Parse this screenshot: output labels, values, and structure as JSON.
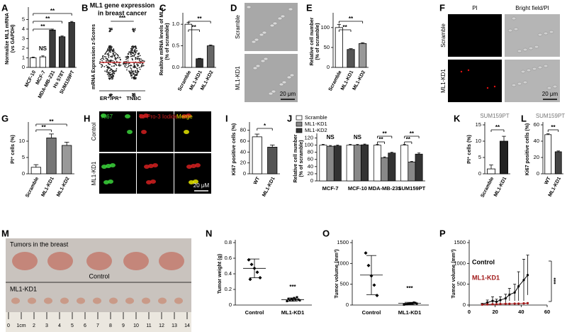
{
  "chart_data": [
    {
      "panel": "A",
      "type": "bar",
      "ylabel": [
        "Normalize ML1 mRNA",
        "(vs GAPDH)"
      ],
      "categories": [
        "MCF-10",
        "MCF-7",
        "MDA-MB-231",
        "Hs 578T",
        "SUM159PT"
      ],
      "values": [
        1.0,
        1.1,
        3.9,
        3.2,
        4.7
      ],
      "errors": [
        0.08,
        0.1,
        0.1,
        0.08,
        0.1
      ],
      "colors": [
        "#ffffff",
        "#ffffff",
        "#3a3a3a",
        "#3a3a3a",
        "#3a3a3a"
      ],
      "ylim": [
        0,
        6
      ],
      "yticks": [
        0,
        1,
        2,
        3,
        4,
        5
      ],
      "annotations": [
        "NS",
        "**",
        "**",
        "**"
      ]
    },
    {
      "panel": "B",
      "type": "strip",
      "title": [
        "ML1 gene expression",
        "in breast cancer"
      ],
      "ylabel": "mRNA Expression z-Scores",
      "categories": [
        "ER⁺/PR⁺",
        "TNBC"
      ],
      "annotations": [
        "***"
      ]
    },
    {
      "panel": "C",
      "type": "bar",
      "ylabel": [
        "Realtive mRNA levels of ML1",
        "(% of scramble)"
      ],
      "categories": [
        "Scramble",
        "ML1-KD1",
        "ML1-KD2"
      ],
      "values": [
        1.0,
        0.2,
        0.5
      ],
      "errors": [
        0.04,
        0.01,
        0.02
      ],
      "colors": [
        "#ffffff",
        "#333333",
        "#666666"
      ],
      "ylim": [
        0,
        1.2
      ],
      "yticks": [
        {
          "value": 0,
          "label": "0.0"
        },
        {
          "value": 0.5,
          "label": "0.5"
        },
        {
          "value": 1,
          "label": "1.0"
        }
      ],
      "annotations": [
        "**",
        "**"
      ]
    },
    {
      "panel": "E",
      "type": "bar",
      "ylabel": [
        "Relative cell number",
        "(% of scramble)"
      ],
      "categories": [
        "Scramble",
        "ML1-KD1",
        "ML1-KD2"
      ],
      "values": [
        100,
        45,
        60
      ],
      "errors": [
        8,
        2,
        2
      ],
      "colors": [
        "#ffffff",
        "#555555",
        "#999999"
      ],
      "ylim": [
        0,
        130
      ],
      "yticks": [
        0,
        50,
        100
      ],
      "annotations": [
        "**",
        "**"
      ]
    },
    {
      "panel": "G",
      "type": "bar",
      "ylabel": "PI⁺ cells (%)",
      "categories": [
        "Scramble",
        "ML1-KD1",
        "ML1-KD2"
      ],
      "values": [
        2,
        11,
        8.7
      ],
      "errors": [
        0.8,
        1.2,
        1.0
      ],
      "colors": [
        "#ffffff",
        "#777777",
        "#999999"
      ],
      "ylim": [
        0,
        15
      ],
      "yticks": [
        0,
        5,
        10
      ],
      "annotations": [
        "**",
        "**"
      ]
    },
    {
      "panel": "I",
      "type": "bar",
      "ylabel": "Ki67 positive cells (%)",
      "categories": [
        "WT",
        "ML1-KD1"
      ],
      "values": [
        68,
        49
      ],
      "errors": [
        5,
        4
      ],
      "colors": [
        "#ffffff",
        "#555555"
      ],
      "ylim": [
        0,
        90
      ],
      "yticks": [
        0,
        20,
        40,
        60,
        80
      ],
      "annotations": [
        "*"
      ]
    },
    {
      "panel": "J",
      "type": "bar",
      "ylabel": [
        "Relative cell number",
        "(% of scramble)"
      ],
      "categories": [
        "MCF-7",
        "MCF-10",
        "MDA-MB-231",
        "SUM159PT"
      ],
      "series": [
        {
          "name": "Scramble",
          "color": "#ffffff",
          "values": [
            100,
            100,
            100,
            100
          ],
          "errors": [
            2,
            2,
            2,
            2
          ]
        },
        {
          "name": "ML1-KD1",
          "color": "#888888",
          "values": [
            97,
            100,
            65,
            53
          ],
          "errors": [
            2,
            2,
            2,
            1.5
          ]
        },
        {
          "name": "ML1-KD2",
          "color": "#333333",
          "values": [
            98,
            101,
            78,
            75
          ],
          "errors": [
            2,
            2,
            2,
            3
          ]
        }
      ],
      "ylim": [
        0,
        125
      ],
      "yticks": [
        0,
        20,
        40,
        60,
        80,
        100,
        120
      ],
      "annotations": [
        "NS",
        "NS",
        "**",
        "**",
        "**",
        "**"
      ]
    },
    {
      "panel": "K",
      "type": "bar",
      "title": "SUM159PT",
      "ylabel": "PI⁺ cells (%)",
      "categories": [
        "Scramble",
        "ML1-KD1"
      ],
      "values": [
        1.5,
        10
      ],
      "errors": [
        1.2,
        1.5
      ],
      "colors": [
        "#ffffff",
        "#222222"
      ],
      "ylim": [
        0,
        15
      ],
      "yticks": [
        0,
        5,
        10,
        15
      ],
      "annotations": [
        "**"
      ]
    },
    {
      "panel": "L",
      "type": "bar",
      "title": "SUM159PT",
      "ylabel": "Ki67 positive cells (%)",
      "categories": [
        "WT",
        "ML1-KD1"
      ],
      "values": [
        48,
        27
      ],
      "errors": [
        1,
        1
      ],
      "colors": [
        "#ffffff",
        "#444444"
      ],
      "ylim": [
        0,
        60
      ],
      "yticks": [
        0,
        20,
        40,
        60
      ],
      "annotations": [
        "**"
      ]
    },
    {
      "panel": "N",
      "type": "strip",
      "ylabel": "Tumor weight (g)",
      "categories": [
        "Control",
        "ML1-KD1"
      ],
      "values": [
        0.47,
        0.07
      ],
      "errors": [
        0.12,
        0.02
      ],
      "points": [
        [
          0.58,
          0.52,
          0.47,
          0.42,
          0.35,
          0.33
        ],
        [
          0.05,
          0.06,
          0.06,
          0.07,
          0.07,
          0.08,
          0.08,
          0.09,
          0.1,
          0.06
        ]
      ],
      "ylim": [
        0,
        0.8
      ],
      "yticks": [
        0,
        0.2,
        0.4,
        0.6,
        0.8
      ],
      "annotations": [
        "***"
      ]
    },
    {
      "panel": "O",
      "type": "strip",
      "ylabel": "Tumor volume (mm³)",
      "categories": [
        "Control",
        "ML1-KD1"
      ],
      "values": [
        720,
        40
      ],
      "errors": [
        470,
        25
      ],
      "points": [
        [
          1250,
          950,
          700,
          480,
          230
        ],
        [
          10,
          20,
          30,
          40,
          50,
          20,
          30,
          40,
          60,
          35
        ]
      ],
      "ylim": [
        0,
        1500
      ],
      "yticks": [
        0,
        500,
        1000,
        1500
      ],
      "annotations": [
        "***"
      ]
    },
    {
      "panel": "P",
      "type": "line",
      "ylabel": "Tumor volume (mm³)",
      "x": [
        10,
        14,
        18,
        21,
        24,
        28,
        31,
        35,
        38,
        42,
        45
      ],
      "series": [
        {
          "name": "Control",
          "color": "#000000",
          "values": [
            20,
            60,
            100,
            80,
            120,
            160,
            250,
            300,
            450,
            600,
            720
          ],
          "errors": [
            20,
            60,
            100,
            60,
            80,
            100,
            150,
            200,
            350,
            500,
            480
          ]
        },
        {
          "name": "ML1-KD1",
          "color": "#a01818",
          "values": [
            10,
            15,
            20,
            20,
            25,
            30,
            30,
            35,
            35,
            40,
            45
          ]
        }
      ],
      "xlim": [
        0,
        60
      ],
      "xticks": [
        0,
        20,
        40,
        60
      ],
      "ylim": [
        0,
        1500
      ],
      "yticks": [
        0,
        500,
        1000,
        1500
      ],
      "annotations": [
        "***"
      ]
    }
  ],
  "images": [
    {
      "panel": "D",
      "rows": [
        "Scramble",
        "ML1-KD1"
      ],
      "scale_bar": "20 μm"
    },
    {
      "panel": "F",
      "columns": [
        "PI",
        "Bright field/PI"
      ],
      "rows": [
        "Scramble",
        "ML1-KD1"
      ],
      "scale_bar": "20 μm"
    },
    {
      "panel": "H",
      "columns": [
        "Ki67",
        "To-Pro-3 Iodide",
        "Merge"
      ],
      "rows": [
        "Control",
        "ML1-KD1"
      ],
      "scale_bar": "20 μM"
    },
    {
      "panel": "M",
      "title": "Tumors in the breast",
      "rows": [
        "Control",
        "ML1-KD1"
      ],
      "ruler": [
        "0",
        "1cm",
        "2",
        "3",
        "4",
        "5",
        "6",
        "7",
        "8",
        "9",
        "10",
        "11",
        "12",
        "13",
        "14"
      ]
    }
  ]
}
